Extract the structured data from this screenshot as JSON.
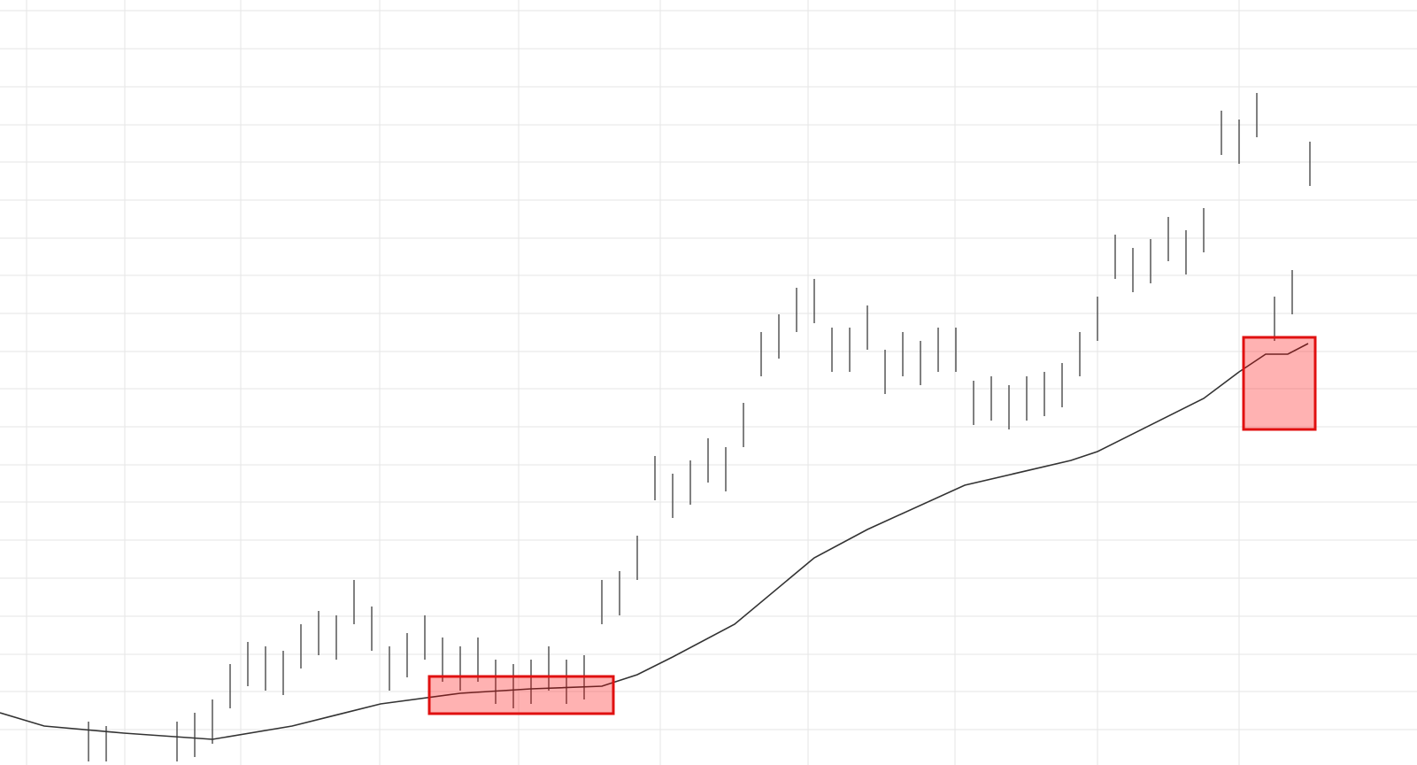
{
  "chart_data": {
    "type": "ohlc",
    "xlim": [
      0,
      1601
    ],
    "ylim": [
      0,
      864
    ],
    "xticks": [
      30,
      141,
      272,
      429,
      586,
      746,
      913,
      1079,
      1240,
      1400
    ],
    "yticks": [
      40,
      83,
      125,
      168,
      211,
      254,
      297,
      339,
      382,
      425,
      467,
      510,
      553,
      595,
      638,
      681,
      723,
      766,
      809,
      852
    ],
    "grid": true,
    "grid_color": "#e6e6e6",
    "x": [
      100,
      120,
      200,
      220,
      240,
      260,
      280,
      300,
      320,
      340,
      360,
      380,
      400,
      420,
      440,
      460,
      480,
      500,
      520,
      540,
      560,
      580,
      600,
      620,
      640,
      660,
      680,
      700,
      720,
      740,
      760,
      780,
      800,
      820,
      840,
      860,
      880,
      900,
      920,
      940,
      960,
      980,
      1000,
      1020,
      1040,
      1060,
      1080,
      1100,
      1120,
      1140,
      1160,
      1180,
      1200,
      1220,
      1240,
      1260,
      1280,
      1300,
      1320,
      1340,
      1360,
      1380,
      1400,
      1420,
      1440,
      1460,
      1480
    ],
    "high": [
      49,
      44,
      49,
      59,
      74,
      114,
      139,
      134,
      129,
      159,
      174,
      169,
      209,
      179,
      134,
      149,
      169,
      144,
      134,
      144,
      119,
      114,
      119,
      134,
      119,
      124,
      209,
      219,
      259,
      349,
      329,
      344,
      369,
      359,
      409,
      489,
      509,
      539,
      549,
      494,
      494,
      519,
      469,
      489,
      479,
      494,
      494,
      434,
      439,
      429,
      439,
      444,
      454,
      489,
      529,
      599,
      584,
      594,
      619,
      604,
      629,
      739,
      729,
      759,
      529,
      559,
      704
    ],
    "low": [
      4,
      4,
      4,
      9,
      24,
      64,
      89,
      84,
      79,
      109,
      124,
      119,
      159,
      129,
      84,
      99,
      119,
      94,
      84,
      94,
      69,
      64,
      69,
      84,
      69,
      74,
      159,
      169,
      209,
      299,
      279,
      294,
      319,
      309,
      359,
      439,
      459,
      489,
      499,
      444,
      444,
      469,
      419,
      439,
      429,
      444,
      444,
      384,
      389,
      379,
      389,
      394,
      404,
      439,
      479,
      549,
      534,
      544,
      569,
      554,
      579,
      689,
      679,
      709,
      479,
      509,
      654
    ],
    "bar_color": "#555555",
    "ma_x": [
      0,
      50,
      140,
      240,
      330,
      430,
      520,
      600,
      680,
      720,
      760,
      830,
      920,
      980,
      1090,
      1210,
      1240,
      1360,
      1400,
      1430,
      1455,
      1478
    ],
    "ma": [
      59,
      44,
      36,
      29,
      44,
      69,
      81,
      86,
      89,
      102,
      122,
      159,
      234,
      266,
      316,
      344,
      354,
      414,
      444,
      464,
      464,
      476
    ],
    "ma_color": "#333333"
  }
}
